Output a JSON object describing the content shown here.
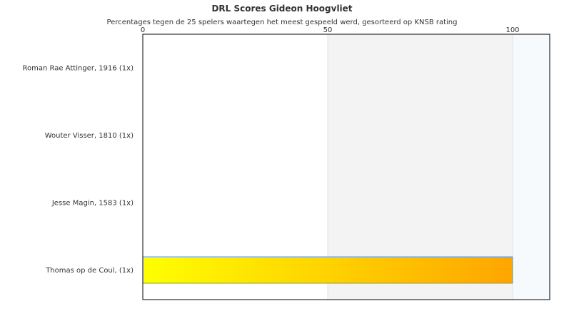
{
  "chart_data": {
    "type": "bar",
    "orientation": "horizontal",
    "title": "DRL Scores Gideon Hoogvliet",
    "subtitle": "Percentages tegen de 25 spelers waartegen het meest gespeeld werd, gesorteerd op KNSB rating",
    "categories": [
      "Roman Rae Attinger, 1916 (1x)",
      "Wouter Visser, 1810 (1x)",
      "Jesse Magin, 1583 (1x)",
      "Thomas op de Coul,  (1x)"
    ],
    "values": [
      0,
      0,
      0,
      100
    ],
    "xlim": [
      0,
      110
    ],
    "xticks": [
      "0",
      "50",
      "100"
    ],
    "xtick_values": [
      0,
      50,
      100
    ],
    "axis_position": "top",
    "bands": [
      {
        "from": 50,
        "to": 100,
        "color": "#f3f3f3"
      },
      {
        "from": 100,
        "to": 110,
        "color": "#f7fafd"
      }
    ],
    "bar_gradient": [
      "#ffff00",
      "#ffa500"
    ],
    "bar_border": "#5b9bd5"
  }
}
